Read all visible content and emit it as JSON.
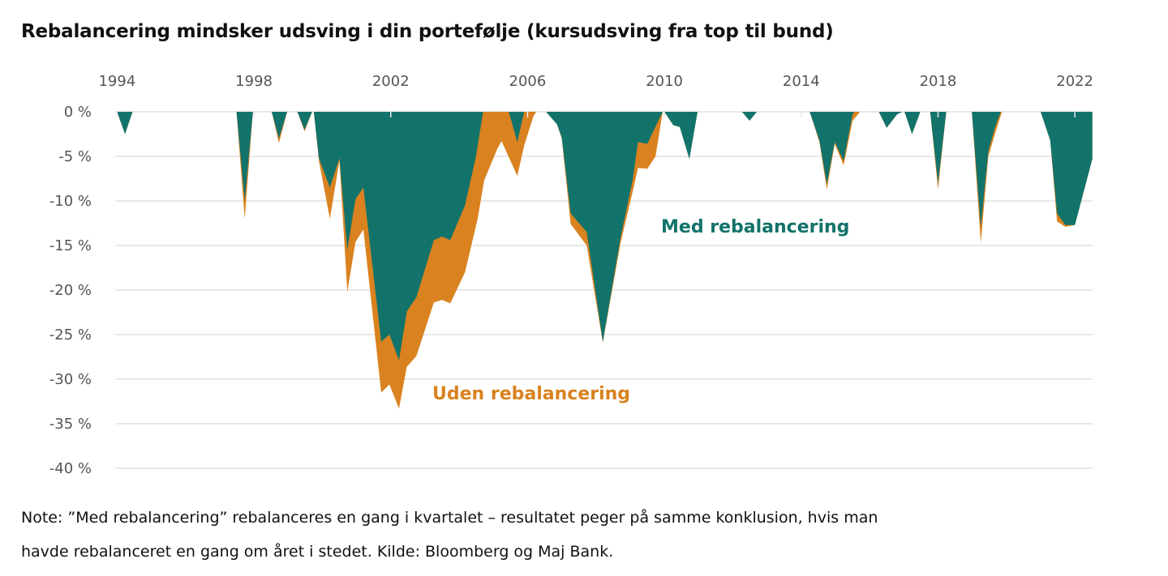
{
  "title": "Rebalancering mindsker udsving i din portefølje (kursudsving fra top til bund)",
  "note_line1": "Note: ”Med rebalancering” rebalanceres en gang i kvartalet – resultatet peger på samme konklusion, hvis man",
  "note_line2": "havde rebalanceret en gang om året i stedet. Kilde: Bloomberg og Maj Bank.",
  "chart_data": {
    "type": "area",
    "title": "Rebalancering mindsker udsving i din portefølje (kursudsving fra top til bund)",
    "xlabel": "",
    "ylabel": "",
    "x_axis_position": "top",
    "xlim": [
      1994,
      2022.5
    ],
    "ylim": [
      -40,
      0
    ],
    "x_ticks": [
      1994,
      1998,
      2002,
      2006,
      2010,
      2014,
      2018,
      2022
    ],
    "x_tick_labels": [
      "1994",
      "1998",
      "2002",
      "2006",
      "2010",
      "2014",
      "2018",
      "2022"
    ],
    "y_ticks": [
      0,
      -5,
      -10,
      -15,
      -20,
      -25,
      -30,
      -35,
      -40
    ],
    "y_tick_labels": [
      "0 %",
      "-5 %",
      "-10 %",
      "-15 %",
      "-20 %",
      "-25 %",
      "-30 %",
      "-35 %",
      "-40 %"
    ],
    "grid": "horizontal",
    "legend": "inline labels",
    "series": [
      {
        "name": "Uden rebalancering",
        "color": "#D9821F",
        "points": [
          [
            1994.0,
            0
          ],
          [
            1994.23,
            -2.5
          ],
          [
            1994.45,
            0
          ],
          [
            1997.49,
            0
          ],
          [
            1997.73,
            -12
          ],
          [
            1997.97,
            0
          ],
          [
            1998.52,
            0
          ],
          [
            1998.73,
            -3.5
          ],
          [
            1998.97,
            0
          ],
          [
            1999.27,
            0
          ],
          [
            1999.48,
            -2.2
          ],
          [
            1999.7,
            0
          ],
          [
            1999.75,
            0
          ],
          [
            1999.9,
            -5.5
          ],
          [
            2000.22,
            -12
          ],
          [
            2000.5,
            -5.5
          ],
          [
            2000.73,
            -20.2
          ],
          [
            2000.97,
            -14.6
          ],
          [
            2001.2,
            -13.2
          ],
          [
            2001.72,
            -31.5
          ],
          [
            2001.96,
            -30.6
          ],
          [
            2002.24,
            -33.3
          ],
          [
            2002.47,
            -28.6
          ],
          [
            2002.75,
            -27.4
          ],
          [
            2003.26,
            -21.4
          ],
          [
            2003.5,
            -21.1
          ],
          [
            2003.74,
            -21.5
          ],
          [
            2004.17,
            -18
          ],
          [
            2004.54,
            -12
          ],
          [
            2004.73,
            -7.7
          ],
          [
            2005.12,
            -4.1
          ],
          [
            2005.24,
            -3.3
          ],
          [
            2005.7,
            -7.2
          ],
          [
            2005.9,
            -3.8
          ],
          [
            2006.17,
            -0.5
          ],
          [
            2006.25,
            0
          ],
          [
            2006.54,
            0
          ],
          [
            2006.86,
            -1.4
          ],
          [
            2007.0,
            -3
          ],
          [
            2007.26,
            -12.6
          ],
          [
            2007.73,
            -15
          ],
          [
            2008.2,
            -25.9
          ],
          [
            2008.72,
            -14.7
          ],
          [
            2009.07,
            -9
          ],
          [
            2009.23,
            -6.3
          ],
          [
            2009.5,
            -6.4
          ],
          [
            2009.74,
            -5
          ],
          [
            2009.95,
            0
          ],
          [
            2010.0,
            0
          ],
          [
            2010.26,
            -1.5
          ],
          [
            2010.45,
            -1.7
          ],
          [
            2010.73,
            -5.3
          ],
          [
            2010.97,
            0
          ],
          [
            2012.27,
            0
          ],
          [
            2012.49,
            -1
          ],
          [
            2012.7,
            0
          ],
          [
            2014.25,
            0
          ],
          [
            2014.53,
            -3.4
          ],
          [
            2014.75,
            -8.7
          ],
          [
            2014.98,
            -3.6
          ],
          [
            2015.24,
            -6
          ],
          [
            2015.5,
            -1
          ],
          [
            2015.72,
            0
          ],
          [
            2016.27,
            0
          ],
          [
            2016.5,
            -1.8
          ],
          [
            2016.8,
            -0.3
          ],
          [
            2016.95,
            0
          ],
          [
            2017.02,
            0
          ],
          [
            2017.24,
            -2.5
          ],
          [
            2017.48,
            0
          ],
          [
            2017.77,
            0
          ],
          [
            2018.0,
            -8.7
          ],
          [
            2018.24,
            0
          ],
          [
            2018.99,
            0
          ],
          [
            2019.25,
            -14.7
          ],
          [
            2019.47,
            -5
          ],
          [
            2019.67,
            -2.4
          ],
          [
            2019.87,
            0
          ],
          [
            2021.0,
            0
          ],
          [
            2021.28,
            -3.2
          ],
          [
            2021.48,
            -12.3
          ],
          [
            2021.72,
            -12.9
          ],
          [
            2022.0,
            -12.7
          ],
          [
            2022.51,
            -5.3
          ],
          [
            2022.51,
            0
          ]
        ]
      },
      {
        "name": "Med rebalancering",
        "color": "#12736B",
        "points": [
          [
            1994.0,
            0
          ],
          [
            1994.23,
            -2.5
          ],
          [
            1994.45,
            0
          ],
          [
            1997.49,
            0
          ],
          [
            1997.73,
            -10
          ],
          [
            1997.97,
            0
          ],
          [
            1998.52,
            0
          ],
          [
            1998.73,
            -3
          ],
          [
            1998.97,
            0
          ],
          [
            1999.27,
            0
          ],
          [
            1999.48,
            -2
          ],
          [
            1999.7,
            0
          ],
          [
            1999.75,
            0
          ],
          [
            1999.9,
            -5.2
          ],
          [
            2000.22,
            -8.5
          ],
          [
            2000.5,
            -5.2
          ],
          [
            2000.73,
            -15.5
          ],
          [
            2000.97,
            -9.8
          ],
          [
            2001.2,
            -8.5
          ],
          [
            2001.72,
            -25.8
          ],
          [
            2001.96,
            -25
          ],
          [
            2002.24,
            -27.9
          ],
          [
            2002.47,
            -22.4
          ],
          [
            2002.75,
            -20.8
          ],
          [
            2003.26,
            -14.4
          ],
          [
            2003.5,
            -14
          ],
          [
            2003.74,
            -14.4
          ],
          [
            2004.17,
            -10.5
          ],
          [
            2004.49,
            -5
          ],
          [
            2004.7,
            0
          ],
          [
            2005.45,
            0
          ],
          [
            2005.7,
            -3.4
          ],
          [
            2005.9,
            0
          ],
          [
            2006.54,
            0
          ],
          [
            2006.86,
            -1.4
          ],
          [
            2007.0,
            -2.9
          ],
          [
            2007.26,
            -11.4
          ],
          [
            2007.73,
            -13.5
          ],
          [
            2008.2,
            -25.8
          ],
          [
            2008.72,
            -14.1
          ],
          [
            2009.07,
            -7.7
          ],
          [
            2009.23,
            -3.4
          ],
          [
            2009.5,
            -3.6
          ],
          [
            2009.95,
            0
          ],
          [
            2010.0,
            0
          ],
          [
            2010.26,
            -1.5
          ],
          [
            2010.45,
            -1.7
          ],
          [
            2010.73,
            -5.3
          ],
          [
            2010.97,
            0
          ],
          [
            2012.27,
            0
          ],
          [
            2012.49,
            -1
          ],
          [
            2012.7,
            0
          ],
          [
            2014.25,
            0
          ],
          [
            2014.53,
            -3.2
          ],
          [
            2014.75,
            -8.1
          ],
          [
            2014.98,
            -3.4
          ],
          [
            2015.24,
            -5.5
          ],
          [
            2015.5,
            -0.3
          ],
          [
            2015.55,
            0
          ],
          [
            2016.27,
            0
          ],
          [
            2016.5,
            -1.8
          ],
          [
            2016.8,
            -0.3
          ],
          [
            2016.95,
            0
          ],
          [
            2017.02,
            0
          ],
          [
            2017.24,
            -2.5
          ],
          [
            2017.48,
            0
          ],
          [
            2017.77,
            0
          ],
          [
            2018.0,
            -8
          ],
          [
            2018.24,
            0
          ],
          [
            2018.99,
            0
          ],
          [
            2019.25,
            -12.9
          ],
          [
            2019.47,
            -4.4
          ],
          [
            2019.67,
            -1.7
          ],
          [
            2019.83,
            0
          ],
          [
            2021.0,
            0
          ],
          [
            2021.28,
            -3.2
          ],
          [
            2021.48,
            -11.4
          ],
          [
            2021.72,
            -12.7
          ],
          [
            2022.0,
            -12.7
          ],
          [
            2022.51,
            -5.3
          ],
          [
            2022.51,
            0
          ]
        ]
      }
    ],
    "annotations": [
      {
        "text": "Med rebalancering",
        "series": "Med rebalancering"
      },
      {
        "text": "Uden rebalancering",
        "series": "Uden rebalancering"
      }
    ]
  }
}
